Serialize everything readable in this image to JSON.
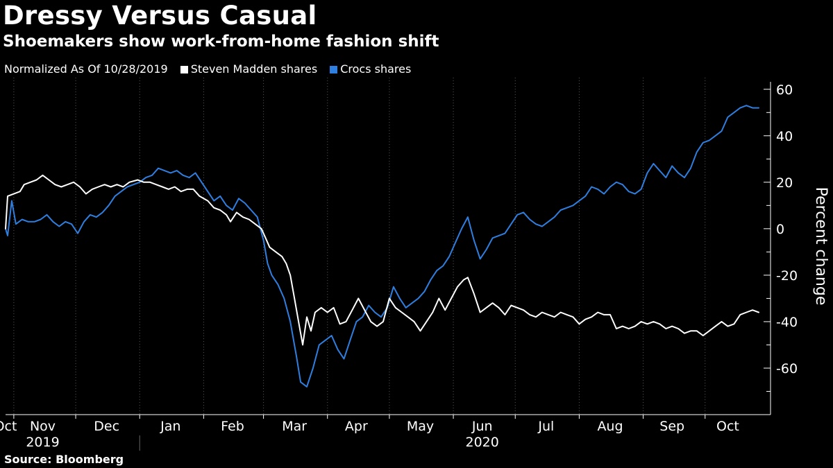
{
  "header": {
    "title": "Dressy Versus Casual",
    "subtitle": "Shoemakers show work-from-home fashion shift"
  },
  "legend": {
    "note": "Normalized As Of 10/28/2019",
    "items": [
      {
        "label": "Steven Madden shares",
        "color": "#ffffff"
      },
      {
        "label": "Crocs shares",
        "color": "#2f7fe0"
      }
    ]
  },
  "footer": {
    "source": "Source:  Bloomberg"
  },
  "chart_data": {
    "type": "line",
    "title": "Dressy Versus Casual",
    "subtitle": "Shoemakers show work-from-home fashion shift",
    "ylabel": "Percent change",
    "ylim": [
      -80,
      65
    ],
    "xlim": [
      "2019-10-28",
      "2020-10-28"
    ],
    "y_ticks": [
      60,
      40,
      20,
      0,
      -20,
      -40,
      -60
    ],
    "y_tick_labels": [
      "60",
      "40",
      "20",
      "0",
      "-20",
      "-40",
      "-60"
    ],
    "x_month_labels": [
      {
        "label": "Oct",
        "date": "2019-10-28"
      },
      {
        "label": "Nov",
        "date": "2019-11-15"
      },
      {
        "label": "Dec",
        "date": "2019-12-16"
      },
      {
        "label": "Jan",
        "date": "2020-01-16"
      },
      {
        "label": "Feb",
        "date": "2020-02-15"
      },
      {
        "label": "Mar",
        "date": "2020-03-16"
      },
      {
        "label": "Apr",
        "date": "2020-04-15"
      },
      {
        "label": "May",
        "date": "2020-05-16"
      },
      {
        "label": "Jun",
        "date": "2020-06-15"
      },
      {
        "label": "Jul",
        "date": "2020-07-16"
      },
      {
        "label": "Aug",
        "date": "2020-08-16"
      },
      {
        "label": "Sep",
        "date": "2020-09-15"
      },
      {
        "label": "Oct",
        "date": "2020-10-12"
      }
    ],
    "x_year_labels": [
      {
        "label": "2019",
        "date": "2019-11-15"
      },
      {
        "label": "2020",
        "date": "2020-06-15"
      }
    ],
    "year_divider_date": "2020-01-01",
    "grid": "vertical dotted lines at month boundaries",
    "legend_position": "top-left",
    "series": [
      {
        "name": "Steven Madden shares",
        "color": "#ffffff",
        "points": [
          [
            "2019-10-28",
            0
          ],
          [
            "2019-10-29",
            14
          ],
          [
            "2019-11-01",
            15
          ],
          [
            "2019-11-04",
            16
          ],
          [
            "2019-11-06",
            19
          ],
          [
            "2019-11-09",
            20
          ],
          [
            "2019-11-12",
            21
          ],
          [
            "2019-11-15",
            23
          ],
          [
            "2019-11-18",
            21
          ],
          [
            "2019-11-21",
            19
          ],
          [
            "2019-11-24",
            18
          ],
          [
            "2019-11-27",
            19
          ],
          [
            "2019-11-30",
            20
          ],
          [
            "2019-12-03",
            18
          ],
          [
            "2019-12-06",
            15
          ],
          [
            "2019-12-09",
            17
          ],
          [
            "2019-12-12",
            18
          ],
          [
            "2019-12-15",
            19
          ],
          [
            "2019-12-18",
            18
          ],
          [
            "2019-12-21",
            19
          ],
          [
            "2019-12-24",
            18
          ],
          [
            "2019-12-27",
            20
          ],
          [
            "2019-12-31",
            21
          ],
          [
            "2020-01-03",
            20
          ],
          [
            "2020-01-06",
            20
          ],
          [
            "2020-01-09",
            19
          ],
          [
            "2020-01-12",
            18
          ],
          [
            "2020-01-15",
            17
          ],
          [
            "2020-01-18",
            18
          ],
          [
            "2020-01-21",
            16
          ],
          [
            "2020-01-24",
            17
          ],
          [
            "2020-01-27",
            17
          ],
          [
            "2020-01-30",
            14
          ],
          [
            "2020-02-03",
            12
          ],
          [
            "2020-02-06",
            9
          ],
          [
            "2020-02-09",
            8
          ],
          [
            "2020-02-12",
            6
          ],
          [
            "2020-02-14",
            3
          ],
          [
            "2020-02-17",
            7
          ],
          [
            "2020-02-20",
            5
          ],
          [
            "2020-02-23",
            4
          ],
          [
            "2020-02-26",
            2
          ],
          [
            "2020-02-29",
            0
          ],
          [
            "2020-03-02",
            -4
          ],
          [
            "2020-03-04",
            -8
          ],
          [
            "2020-03-07",
            -10
          ],
          [
            "2020-03-10",
            -12
          ],
          [
            "2020-03-12",
            -15
          ],
          [
            "2020-03-14",
            -20
          ],
          [
            "2020-03-16",
            -30
          ],
          [
            "2020-03-18",
            -40
          ],
          [
            "2020-03-20",
            -50
          ],
          [
            "2020-03-22",
            -38
          ],
          [
            "2020-03-24",
            -44
          ],
          [
            "2020-03-26",
            -36
          ],
          [
            "2020-03-29",
            -34
          ],
          [
            "2020-04-01",
            -36
          ],
          [
            "2020-04-04",
            -34
          ],
          [
            "2020-04-07",
            -41
          ],
          [
            "2020-04-10",
            -40
          ],
          [
            "2020-04-13",
            -35
          ],
          [
            "2020-04-16",
            -30
          ],
          [
            "2020-04-19",
            -35
          ],
          [
            "2020-04-22",
            -40
          ],
          [
            "2020-04-25",
            -42
          ],
          [
            "2020-04-28",
            -40
          ],
          [
            "2020-05-01",
            -30
          ],
          [
            "2020-05-04",
            -34
          ],
          [
            "2020-05-07",
            -36
          ],
          [
            "2020-05-10",
            -38
          ],
          [
            "2020-05-13",
            -40
          ],
          [
            "2020-05-16",
            -44
          ],
          [
            "2020-05-19",
            -40
          ],
          [
            "2020-05-22",
            -36
          ],
          [
            "2020-05-25",
            -30
          ],
          [
            "2020-05-28",
            -35
          ],
          [
            "2020-05-31",
            -30
          ],
          [
            "2020-06-03",
            -25
          ],
          [
            "2020-06-06",
            -22
          ],
          [
            "2020-06-08",
            -21
          ],
          [
            "2020-06-11",
            -28
          ],
          [
            "2020-06-14",
            -36
          ],
          [
            "2020-06-17",
            -34
          ],
          [
            "2020-06-20",
            -32
          ],
          [
            "2020-06-23",
            -34
          ],
          [
            "2020-06-26",
            -37
          ],
          [
            "2020-06-29",
            -33
          ],
          [
            "2020-07-02",
            -34
          ],
          [
            "2020-07-05",
            -35
          ],
          [
            "2020-07-08",
            -37
          ],
          [
            "2020-07-11",
            -38
          ],
          [
            "2020-07-14",
            -36
          ],
          [
            "2020-07-17",
            -37
          ],
          [
            "2020-07-20",
            -38
          ],
          [
            "2020-07-23",
            -36
          ],
          [
            "2020-07-26",
            -37
          ],
          [
            "2020-07-29",
            -38
          ],
          [
            "2020-08-01",
            -41
          ],
          [
            "2020-08-04",
            -39
          ],
          [
            "2020-08-07",
            -38
          ],
          [
            "2020-08-10",
            -36
          ],
          [
            "2020-08-13",
            -37
          ],
          [
            "2020-08-16",
            -37
          ],
          [
            "2020-08-19",
            -43
          ],
          [
            "2020-08-22",
            -42
          ],
          [
            "2020-08-25",
            -43
          ],
          [
            "2020-08-28",
            -42
          ],
          [
            "2020-08-31",
            -40
          ],
          [
            "2020-09-03",
            -41
          ],
          [
            "2020-09-06",
            -40
          ],
          [
            "2020-09-09",
            -41
          ],
          [
            "2020-09-12",
            -43
          ],
          [
            "2020-09-15",
            -42
          ],
          [
            "2020-09-18",
            -43
          ],
          [
            "2020-09-21",
            -45
          ],
          [
            "2020-09-24",
            -44
          ],
          [
            "2020-09-27",
            -44
          ],
          [
            "2020-09-30",
            -46
          ],
          [
            "2020-10-03",
            -44
          ],
          [
            "2020-10-06",
            -42
          ],
          [
            "2020-10-09",
            -40
          ],
          [
            "2020-10-12",
            -42
          ],
          [
            "2020-10-15",
            -41
          ],
          [
            "2020-10-18",
            -37
          ],
          [
            "2020-10-21",
            -36
          ],
          [
            "2020-10-24",
            -35
          ],
          [
            "2020-10-27",
            -36
          ]
        ]
      },
      {
        "name": "Crocs shares",
        "color": "#2f7fe0",
        "points": [
          [
            "2019-10-28",
            0
          ],
          [
            "2019-10-29",
            -3
          ],
          [
            "2019-10-31",
            12
          ],
          [
            "2019-11-02",
            2
          ],
          [
            "2019-11-05",
            4
          ],
          [
            "2019-11-08",
            3
          ],
          [
            "2019-11-11",
            3
          ],
          [
            "2019-11-14",
            4
          ],
          [
            "2019-11-17",
            6
          ],
          [
            "2019-11-20",
            3
          ],
          [
            "2019-11-23",
            1
          ],
          [
            "2019-11-26",
            3
          ],
          [
            "2019-11-29",
            2
          ],
          [
            "2019-12-02",
            -2
          ],
          [
            "2019-12-05",
            3
          ],
          [
            "2019-12-08",
            6
          ],
          [
            "2019-12-11",
            5
          ],
          [
            "2019-12-14",
            7
          ],
          [
            "2019-12-17",
            10
          ],
          [
            "2019-12-20",
            14
          ],
          [
            "2019-12-23",
            16
          ],
          [
            "2019-12-26",
            18
          ],
          [
            "2019-12-29",
            19
          ],
          [
            "2020-01-01",
            20
          ],
          [
            "2020-01-04",
            22
          ],
          [
            "2020-01-07",
            23
          ],
          [
            "2020-01-10",
            26
          ],
          [
            "2020-01-13",
            25
          ],
          [
            "2020-01-16",
            24
          ],
          [
            "2020-01-19",
            25
          ],
          [
            "2020-01-22",
            23
          ],
          [
            "2020-01-25",
            22
          ],
          [
            "2020-01-28",
            24
          ],
          [
            "2020-01-31",
            20
          ],
          [
            "2020-02-03",
            16
          ],
          [
            "2020-02-06",
            12
          ],
          [
            "2020-02-09",
            14
          ],
          [
            "2020-02-12",
            10
          ],
          [
            "2020-02-15",
            8
          ],
          [
            "2020-02-18",
            13
          ],
          [
            "2020-02-21",
            11
          ],
          [
            "2020-02-24",
            8
          ],
          [
            "2020-02-27",
            5
          ],
          [
            "2020-03-01",
            -5
          ],
          [
            "2020-03-03",
            -15
          ],
          [
            "2020-03-05",
            -20
          ],
          [
            "2020-03-08",
            -24
          ],
          [
            "2020-03-11",
            -30
          ],
          [
            "2020-03-14",
            -40
          ],
          [
            "2020-03-17",
            -55
          ],
          [
            "2020-03-19",
            -66
          ],
          [
            "2020-03-22",
            -68
          ],
          [
            "2020-03-25",
            -60
          ],
          [
            "2020-03-28",
            -50
          ],
          [
            "2020-03-31",
            -48
          ],
          [
            "2020-04-03",
            -46
          ],
          [
            "2020-04-06",
            -52
          ],
          [
            "2020-04-09",
            -56
          ],
          [
            "2020-04-12",
            -48
          ],
          [
            "2020-04-15",
            -40
          ],
          [
            "2020-04-18",
            -38
          ],
          [
            "2020-04-21",
            -33
          ],
          [
            "2020-04-24",
            -36
          ],
          [
            "2020-04-27",
            -38
          ],
          [
            "2020-04-30",
            -34
          ],
          [
            "2020-05-03",
            -25
          ],
          [
            "2020-05-06",
            -30
          ],
          [
            "2020-05-09",
            -34
          ],
          [
            "2020-05-12",
            -32
          ],
          [
            "2020-05-15",
            -30
          ],
          [
            "2020-05-18",
            -27
          ],
          [
            "2020-05-21",
            -22
          ],
          [
            "2020-05-24",
            -18
          ],
          [
            "2020-05-27",
            -16
          ],
          [
            "2020-05-30",
            -12
          ],
          [
            "2020-06-02",
            -6
          ],
          [
            "2020-06-05",
            0
          ],
          [
            "2020-06-08",
            5
          ],
          [
            "2020-06-11",
            -5
          ],
          [
            "2020-06-14",
            -13
          ],
          [
            "2020-06-17",
            -9
          ],
          [
            "2020-06-20",
            -4
          ],
          [
            "2020-06-23",
            -3
          ],
          [
            "2020-06-26",
            -2
          ],
          [
            "2020-06-29",
            2
          ],
          [
            "2020-07-02",
            6
          ],
          [
            "2020-07-05",
            7
          ],
          [
            "2020-07-08",
            4
          ],
          [
            "2020-07-11",
            2
          ],
          [
            "2020-07-14",
            1
          ],
          [
            "2020-07-17",
            3
          ],
          [
            "2020-07-20",
            5
          ],
          [
            "2020-07-23",
            8
          ],
          [
            "2020-07-26",
            9
          ],
          [
            "2020-07-29",
            10
          ],
          [
            "2020-08-01",
            12
          ],
          [
            "2020-08-04",
            14
          ],
          [
            "2020-08-07",
            18
          ],
          [
            "2020-08-10",
            17
          ],
          [
            "2020-08-13",
            15
          ],
          [
            "2020-08-16",
            18
          ],
          [
            "2020-08-19",
            20
          ],
          [
            "2020-08-22",
            19
          ],
          [
            "2020-08-25",
            16
          ],
          [
            "2020-08-28",
            15
          ],
          [
            "2020-08-31",
            17
          ],
          [
            "2020-09-03",
            24
          ],
          [
            "2020-09-06",
            28
          ],
          [
            "2020-09-09",
            25
          ],
          [
            "2020-09-12",
            22
          ],
          [
            "2020-09-15",
            27
          ],
          [
            "2020-09-18",
            24
          ],
          [
            "2020-09-21",
            22
          ],
          [
            "2020-09-24",
            26
          ],
          [
            "2020-09-27",
            33
          ],
          [
            "2020-09-30",
            37
          ],
          [
            "2020-10-03",
            38
          ],
          [
            "2020-10-06",
            40
          ],
          [
            "2020-10-09",
            42
          ],
          [
            "2020-10-12",
            48
          ],
          [
            "2020-10-15",
            50
          ],
          [
            "2020-10-18",
            52
          ],
          [
            "2020-10-21",
            53
          ],
          [
            "2020-10-24",
            52
          ],
          [
            "2020-10-27",
            52
          ]
        ]
      }
    ]
  }
}
